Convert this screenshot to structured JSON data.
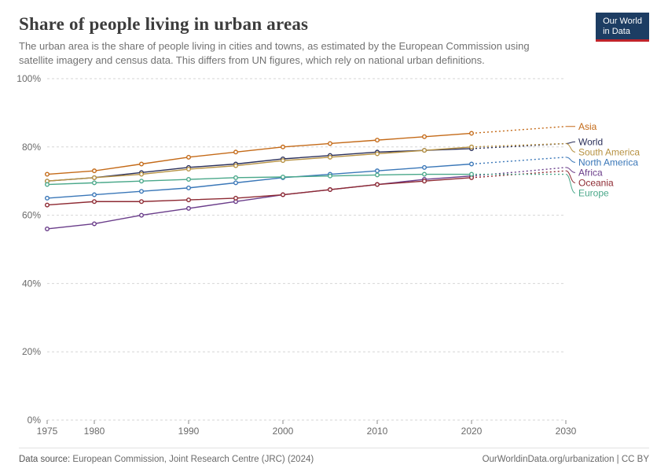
{
  "header": {
    "title": "Share of people living in urban areas",
    "subtitle": "The urban area is the share of people living in cities and towns, as estimated by the European Commission using satellite imagery and census data. This differs from UN figures, which rely on national urban definitions.",
    "logo_line1": "Our World",
    "logo_line2": "in Data"
  },
  "chart": {
    "type": "line",
    "background_color": "#ffffff",
    "grid_color": "#d6d6d6",
    "axis_text_color": "#6a6a6a",
    "xlim": [
      1975,
      2030
    ],
    "ylim": [
      0,
      100
    ],
    "x_ticks": [
      1975,
      1980,
      1990,
      2000,
      2010,
      2020,
      2030
    ],
    "y_ticks": [
      0,
      20,
      40,
      60,
      80,
      100
    ],
    "y_tick_labels": [
      "0%",
      "20%",
      "40%",
      "60%",
      "80%",
      "100%"
    ],
    "x_years": [
      1975,
      1980,
      1985,
      1990,
      1995,
      2000,
      2005,
      2010,
      2015,
      2020
    ],
    "proj_years": [
      2020,
      2025,
      2030
    ],
    "label_fontsize": 12,
    "line_width": 1.4,
    "marker_radius": 2.3,
    "series": [
      {
        "name": "Asia",
        "color": "#c46a18",
        "values": [
          72,
          73,
          75,
          77,
          78.5,
          80,
          81,
          82,
          83,
          84
        ],
        "proj": [
          84,
          85,
          86
        ],
        "label_y": 86
      },
      {
        "name": "World",
        "color": "#2a2f5a",
        "values": [
          70,
          71,
          72.5,
          74,
          75,
          76.5,
          77.5,
          78.5,
          79,
          79.5
        ],
        "proj": [
          79.5,
          80.2,
          81
        ],
        "label_y": 81.5
      },
      {
        "name": "South America",
        "color": "#b79243",
        "values": [
          70,
          71,
          72,
          73.5,
          74.5,
          76,
          77,
          78,
          79,
          80
        ],
        "proj": [
          80,
          80.5,
          81
        ],
        "label_y": 78.5
      },
      {
        "name": "North America",
        "color": "#3a77b8",
        "values": [
          65,
          66,
          67,
          68,
          69.5,
          71,
          72,
          73,
          74,
          75
        ],
        "proj": [
          75,
          76,
          77
        ],
        "label_y": 75.5
      },
      {
        "name": "Africa",
        "color": "#6a3d8a",
        "values": [
          56,
          57.5,
          60,
          62,
          64,
          66,
          67.5,
          69,
          70.5,
          71.5
        ],
        "proj": [
          71.5,
          72.7,
          74
        ],
        "label_y": 72.5
      },
      {
        "name": "Oceania",
        "color": "#8e2a33",
        "values": [
          63,
          64,
          64,
          64.5,
          65,
          66,
          67.5,
          69,
          70,
          71
        ],
        "proj": [
          71,
          72,
          73
        ],
        "label_y": 69.5
      },
      {
        "name": "Europe",
        "color": "#4aa88a",
        "values": [
          69,
          69.5,
          70,
          70.5,
          71,
          71.2,
          71.5,
          71.8,
          72,
          72
        ],
        "proj": [
          72,
          72,
          72
        ],
        "label_y": 66.5
      }
    ]
  },
  "footer": {
    "source_label": "Data source:",
    "source_text": "European Commission, Joint Research Centre (JRC) (2024)",
    "right_text": "OurWorldinData.org/urbanization | CC BY"
  }
}
